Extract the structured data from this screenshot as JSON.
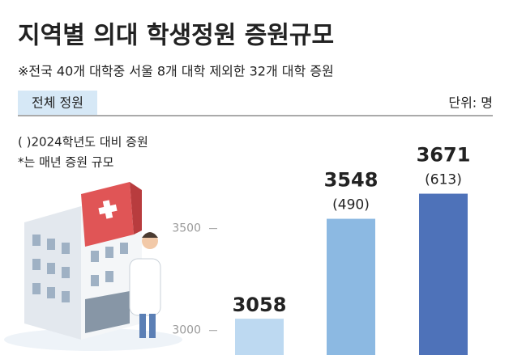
{
  "chart_data": {
    "type": "bar",
    "title": "지역별 의대 학생정원 증원규모",
    "subtitle": "※전국 40개 대학중 서울 8개 대학 제외한 32개 대학 증원",
    "tag": "전체 정원",
    "unit": "단위: 명",
    "notes": [
      "( )2024학년도 대비 증원",
      "*는 매년 증원 규모"
    ],
    "categories": [
      null,
      null,
      null
    ],
    "values": [
      3058,
      3548,
      3671
    ],
    "increase_labels": [
      null,
      "(490)",
      "(613)"
    ],
    "colors": [
      "#bdd9f1",
      "#8cb9e2",
      "#4e72b9"
    ],
    "ylim": [
      2880,
      3800
    ],
    "yticks": [
      3000,
      3500
    ]
  }
}
